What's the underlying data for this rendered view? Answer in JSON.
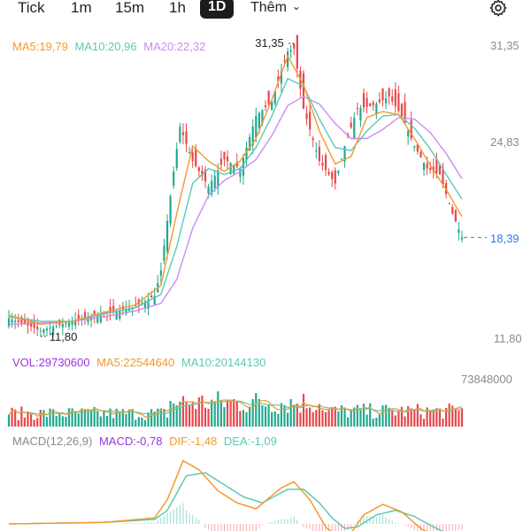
{
  "toolbar": {
    "tabs": [
      {
        "label": "Tick"
      },
      {
        "label": "1m"
      },
      {
        "label": "15m"
      },
      {
        "label": "1h"
      },
      {
        "label": "1D",
        "active": true
      }
    ],
    "more_label": "Thêm"
  },
  "colors": {
    "up": "#21a98f",
    "down": "#e8474a",
    "ma5": "#f29a2e",
    "ma10": "#5cc9b5",
    "ma20": "#c98ef0",
    "vol_label": "#9b34e6",
    "dea": "#5cc9b5",
    "dif": "#f29a2e",
    "last_price": "#2d7be5"
  },
  "price_panel": {
    "ma_legend": {
      "ma5": "MA5:19,79",
      "ma10": "MA10:20,96",
      "ma20": "MA20:22,32"
    },
    "y_ticks": [
      "31,35",
      "24,83",
      "11,80"
    ],
    "y_tick_values": [
      31.35,
      24.83,
      11.8
    ],
    "high_label": "31,35",
    "low_label": "11,80",
    "last_price_label": "18,39"
  },
  "volume_panel": {
    "legend": {
      "vol": "VOL:29730600",
      "ma5": "MA5:22544640",
      "ma10": "MA10:20144130"
    },
    "max_label": "73848000"
  },
  "macd_panel": {
    "legend": {
      "name": "MACD(12,26,9)",
      "macd": "MACD:-0,78",
      "dif": "DIF:-1,48",
      "dea": "DEA:-1,09"
    }
  },
  "chart_data": {
    "type": "candlestick",
    "y_range": [
      11.8,
      31.35
    ],
    "high": 31.35,
    "low": 11.8,
    "last": 18.39,
    "ma5_keypoints": [
      [
        0,
        13.2
      ],
      [
        10,
        12.6
      ],
      [
        20,
        12.8
      ],
      [
        30,
        13.4
      ],
      [
        40,
        13.9
      ],
      [
        48,
        15.2
      ],
      [
        53,
        20.0
      ],
      [
        58,
        24.5
      ],
      [
        63,
        23.5
      ],
      [
        68,
        22.8
      ],
      [
        73,
        23.5
      ],
      [
        78,
        25.0
      ],
      [
        83,
        27.6
      ],
      [
        88,
        30.5
      ],
      [
        93,
        28.6
      ],
      [
        98,
        25.5
      ],
      [
        103,
        23.3
      ],
      [
        108,
        23.8
      ],
      [
        113,
        26.4
      ],
      [
        118,
        26.8
      ],
      [
        123,
        26.6
      ],
      [
        128,
        25.0
      ],
      [
        133,
        23.2
      ],
      [
        138,
        21.6
      ],
      [
        143,
        19.79
      ]
    ],
    "ma10_keypoints": [
      [
        0,
        13.1
      ],
      [
        10,
        12.8
      ],
      [
        20,
        12.8
      ],
      [
        30,
        13.3
      ],
      [
        40,
        13.7
      ],
      [
        48,
        14.6
      ],
      [
        53,
        17.8
      ],
      [
        58,
        22.0
      ],
      [
        63,
        23.0
      ],
      [
        68,
        22.6
      ],
      [
        73,
        23.0
      ],
      [
        78,
        24.4
      ],
      [
        83,
        26.5
      ],
      [
        88,
        29.0
      ],
      [
        93,
        28.5
      ],
      [
        98,
        26.3
      ],
      [
        103,
        24.4
      ],
      [
        108,
        24.2
      ],
      [
        113,
        25.5
      ],
      [
        118,
        26.5
      ],
      [
        123,
        26.6
      ],
      [
        128,
        25.7
      ],
      [
        133,
        24.3
      ],
      [
        138,
        22.6
      ],
      [
        143,
        20.96
      ]
    ],
    "ma20_keypoints": [
      [
        0,
        12.6
      ],
      [
        10,
        12.7
      ],
      [
        20,
        12.8
      ],
      [
        30,
        13.1
      ],
      [
        40,
        13.5
      ],
      [
        48,
        14.0
      ],
      [
        53,
        15.6
      ],
      [
        58,
        19.0
      ],
      [
        63,
        21.2
      ],
      [
        68,
        22.2
      ],
      [
        73,
        22.8
      ],
      [
        78,
        23.6
      ],
      [
        83,
        25.2
      ],
      [
        88,
        27.2
      ],
      [
        93,
        27.8
      ],
      [
        98,
        27.3
      ],
      [
        103,
        26.0
      ],
      [
        108,
        25.0
      ],
      [
        113,
        25.0
      ],
      [
        118,
        25.6
      ],
      [
        123,
        26.4
      ],
      [
        128,
        26.3
      ],
      [
        133,
        25.4
      ],
      [
        138,
        24.0
      ],
      [
        143,
        22.32
      ]
    ],
    "close_keypoints": [
      [
        0,
        13.0
      ],
      [
        10,
        12.2
      ],
      [
        20,
        12.8
      ],
      [
        30,
        13.3
      ],
      [
        40,
        13.8
      ],
      [
        46,
        14.5
      ],
      [
        48,
        16.2
      ],
      [
        50,
        19.5
      ],
      [
        52,
        22.8
      ],
      [
        54,
        25.8
      ],
      [
        58,
        23.5
      ],
      [
        63,
        21.8
      ],
      [
        68,
        23.6
      ],
      [
        73,
        23.0
      ],
      [
        78,
        26.5
      ],
      [
        83,
        27.5
      ],
      [
        88,
        30.8
      ],
      [
        90,
        31.0
      ],
      [
        93,
        27.0
      ],
      [
        98,
        23.5
      ],
      [
        103,
        22.0
      ],
      [
        106,
        24.5
      ],
      [
        110,
        27.0
      ],
      [
        115,
        27.2
      ],
      [
        120,
        27.8
      ],
      [
        124,
        26.5
      ],
      [
        128,
        24.5
      ],
      [
        132,
        23.0
      ],
      [
        136,
        22.6
      ],
      [
        140,
        20.0
      ],
      [
        143,
        18.39
      ]
    ],
    "dif_keypoints": [
      [
        0,
        0.0
      ],
      [
        30,
        0.1
      ],
      [
        46,
        0.4
      ],
      [
        50,
        1.6
      ],
      [
        55,
        4.2
      ],
      [
        60,
        3.6
      ],
      [
        66,
        2.2
      ],
      [
        72,
        1.4
      ],
      [
        78,
        1.0
      ],
      [
        86,
        2.4
      ],
      [
        90,
        2.8
      ],
      [
        95,
        1.6
      ],
      [
        100,
        -0.2
      ],
      [
        104,
        -0.9
      ],
      [
        108,
        -0.6
      ],
      [
        112,
        0.6
      ],
      [
        118,
        1.3
      ],
      [
        124,
        0.8
      ],
      [
        130,
        -0.3
      ],
      [
        136,
        -1.0
      ],
      [
        143,
        -1.48
      ]
    ],
    "dea_keypoints": [
      [
        0,
        0.0
      ],
      [
        30,
        0.1
      ],
      [
        46,
        0.3
      ],
      [
        50,
        0.9
      ],
      [
        56,
        3.2
      ],
      [
        62,
        3.4
      ],
      [
        68,
        2.6
      ],
      [
        74,
        1.8
      ],
      [
        80,
        1.4
      ],
      [
        88,
        2.3
      ],
      [
        93,
        2.3
      ],
      [
        98,
        1.4
      ],
      [
        102,
        0.4
      ],
      [
        106,
        -0.3
      ],
      [
        110,
        -0.2
      ],
      [
        116,
        0.6
      ],
      [
        122,
        0.9
      ],
      [
        128,
        0.5
      ],
      [
        134,
        -0.2
      ],
      [
        140,
        -0.8
      ],
      [
        143,
        -1.09
      ]
    ]
  }
}
